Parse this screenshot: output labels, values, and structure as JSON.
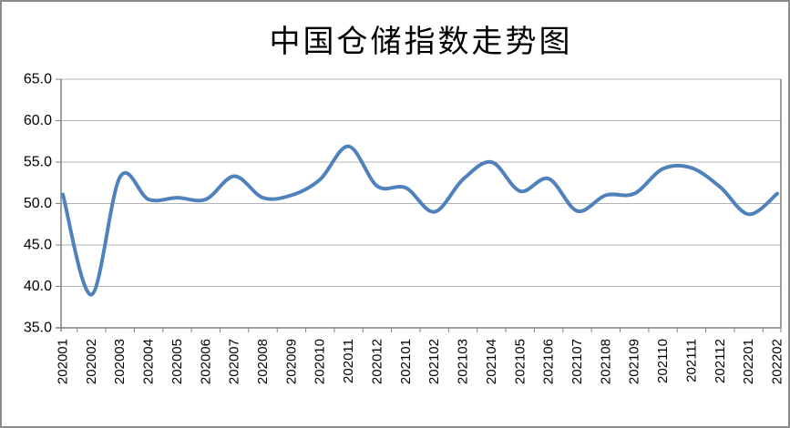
{
  "window": {
    "background_color": "#FFFFFF",
    "frame_border_color": "#8C8C8C"
  },
  "chart_data": {
    "type": "line",
    "title": "中国仓储指数走势图",
    "categories": [
      "202001",
      "202002",
      "202003",
      "202004",
      "202005",
      "202006",
      "202007",
      "202008",
      "202009",
      "202010",
      "202011",
      "202012",
      "202101",
      "202102",
      "202103",
      "202104",
      "202105",
      "202106",
      "202107",
      "202108",
      "202109",
      "202110",
      "202111",
      "202112",
      "202201",
      "202202"
    ],
    "values": [
      51.1,
      39.0,
      53.2,
      50.5,
      50.7,
      50.5,
      53.3,
      50.7,
      51.0,
      52.9,
      56.9,
      52.1,
      51.9,
      49.0,
      52.9,
      55.0,
      51.5,
      53.0,
      49.1,
      51.0,
      51.2,
      54.2,
      54.3,
      52.0,
      48.7,
      51.2
    ],
    "ylim": [
      35,
      65
    ],
    "ytick_labels": [
      "65.0",
      "60.0",
      "55.0",
      "50.0",
      "45.0",
      "40.0",
      "35.0"
    ],
    "x_label_rotation_degrees": -90,
    "grid": "horizontal",
    "legend": "none",
    "smooth": true,
    "line_color": "#4F81BD",
    "line_width": 4,
    "gridline_color": "#B3B3B3",
    "axis_color": "#808080",
    "label_color": "#000000"
  }
}
